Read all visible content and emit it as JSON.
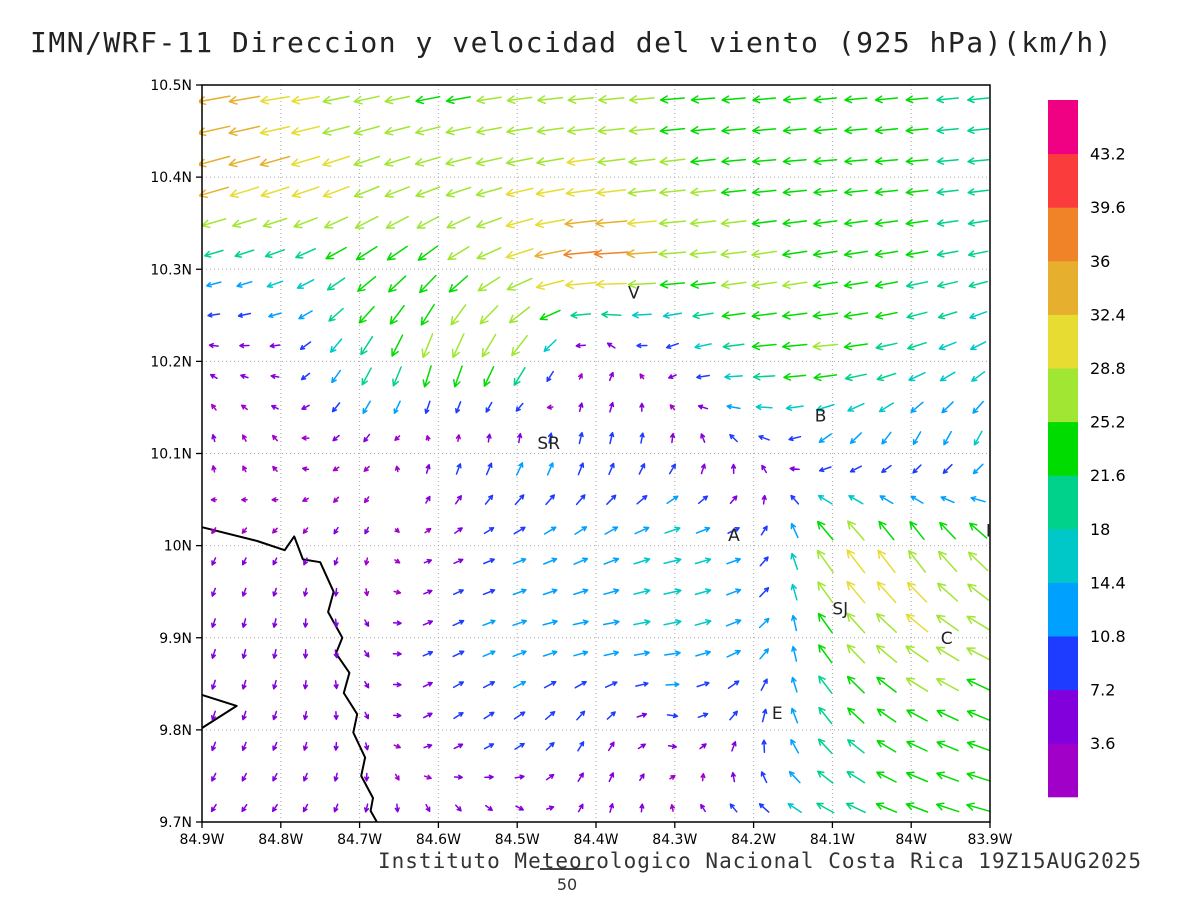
{
  "title": "IMN/WRF-11 Direccion y velocidad del viento (925 hPa)(km/h)",
  "caption": "Instituto Meteorologico Nacional Costa Rica  19Z15AUG2025",
  "chart_data": {
    "type": "vector_field",
    "title": "IMN/WRF-11 Direccion y velocidad del viento (925 hPa)(km/h)",
    "units": "km/h",
    "level": "925 hPa",
    "source": "Instituto Meteorologico Nacional Costa Rica",
    "valid_time": "19Z15AUG2025",
    "grid": true,
    "lon_range_w": [
      84.9,
      83.9
    ],
    "lat_range_n": [
      9.7,
      10.5
    ],
    "lon_tick_vals": [
      84.9,
      84.8,
      84.7,
      84.6,
      84.5,
      84.4,
      84.3,
      84.2,
      84.1,
      84.0,
      83.9
    ],
    "lon_tick_labels": [
      "84.9W",
      "84.8W",
      "84.7W",
      "84.6W",
      "84.5W",
      "84.4W",
      "84.3W",
      "84.2W",
      "84.1W",
      "84W",
      "83.9W"
    ],
    "lat_tick_vals": [
      10.5,
      10.4,
      10.3,
      10.2,
      10.1,
      10.0,
      9.9,
      9.8,
      9.7
    ],
    "lat_tick_labels": [
      "10.5N",
      "10.4N",
      "10.3N",
      "10.2N",
      "10.1N",
      "10N",
      "9.9N",
      "9.8N",
      "9.7N"
    ],
    "colorbar": {
      "units": "km/h",
      "levels": [
        3.6,
        7.2,
        10.8,
        14.4,
        18,
        21.6,
        25.2,
        28.8,
        32.4,
        36,
        39.6,
        43.2
      ],
      "colors": [
        "#a000c8",
        "#8200dc",
        "#1e3cff",
        "#00a0ff",
        "#00c8c8",
        "#00d28c",
        "#00dc00",
        "#a0e632",
        "#e6dc32",
        "#e6af2d",
        "#f08228",
        "#fa3c3c",
        "#f00082"
      ],
      "labels": [
        "43.2",
        "39.6",
        "36",
        "32.4",
        "28.8",
        "25.2",
        "21.6",
        "18",
        "14.4",
        "10.8",
        "7.2",
        "3.6"
      ]
    },
    "stations": [
      {
        "label": "V",
        "lon_w": 84.352,
        "lat_n": 10.268
      },
      {
        "label": "B",
        "lon_w": 84.115,
        "lat_n": 10.135
      },
      {
        "label": "SR",
        "lon_w": 84.46,
        "lat_n": 10.105
      },
      {
        "label": "A",
        "lon_w": 84.225,
        "lat_n": 10.005
      },
      {
        "label": "SJ",
        "lon_w": 84.09,
        "lat_n": 9.925
      },
      {
        "label": "C",
        "lon_w": 83.955,
        "lat_n": 9.893
      },
      {
        "label": "I",
        "lon_w": 83.902,
        "lat_n": 10.01
      },
      {
        "label": "E",
        "lon_w": 84.17,
        "lat_n": 9.812
      }
    ],
    "reference_vector": {
      "label": "50"
    },
    "wind": {
      "lon_w": [
        84.9,
        84.8,
        84.7,
        84.6,
        84.5,
        84.4,
        84.3,
        84.2,
        84.1,
        84.0,
        83.9
      ],
      "lat_n": [
        10.5,
        10.4,
        10.3,
        10.2,
        10.1,
        10.0,
        9.9,
        9.8,
        9.7
      ],
      "uv": [
        [
          [
            -36,
            -6
          ],
          [
            -30,
            -4
          ],
          [
            -26,
            -5
          ],
          [
            -24,
            -4
          ],
          [
            -25,
            -3
          ],
          [
            -26,
            -2
          ],
          [
            -24,
            -2
          ],
          [
            -23,
            -2
          ],
          [
            -22,
            -2
          ],
          [
            -22,
            -2
          ],
          [
            -21,
            -2
          ]
        ],
        [
          [
            -35,
            -10
          ],
          [
            -32,
            -10
          ],
          [
            -27,
            -10
          ],
          [
            -26,
            -8
          ],
          [
            -28,
            -6
          ],
          [
            -30,
            -4
          ],
          [
            -26,
            -3
          ],
          [
            -24,
            -2
          ],
          [
            -23,
            -2
          ],
          [
            -22,
            -2
          ],
          [
            -20,
            -2
          ]
        ],
        [
          [
            -14,
            -4
          ],
          [
            -16,
            -6
          ],
          [
            -20,
            -14
          ],
          [
            -18,
            -16
          ],
          [
            -28,
            -10
          ],
          [
            -41,
            -2
          ],
          [
            -28,
            -2
          ],
          [
            -26,
            -4
          ],
          [
            -24,
            -4
          ],
          [
            -22,
            -4
          ],
          [
            -18,
            -4
          ]
        ],
        [
          [
            -4,
            2
          ],
          [
            -5,
            0
          ],
          [
            -10,
            -18
          ],
          [
            -8,
            -28
          ],
          [
            -14,
            -24
          ],
          [
            4,
            6
          ],
          [
            -6,
            -4
          ],
          [
            -24,
            -2
          ],
          [
            -26,
            -2
          ],
          [
            -18,
            -6
          ],
          [
            -12,
            -8
          ]
        ],
        [
          [
            0,
            4
          ],
          [
            -2,
            3
          ],
          [
            -3,
            -3
          ],
          [
            2,
            8
          ],
          [
            4,
            12
          ],
          [
            2,
            10
          ],
          [
            2,
            8
          ],
          [
            -4,
            6
          ],
          [
            -8,
            -10
          ],
          [
            -4,
            -12
          ],
          [
            -6,
            -14
          ]
        ],
        [
          [
            -2,
            -4
          ],
          [
            -2,
            -3
          ],
          [
            -2,
            -4
          ],
          [
            4,
            2
          ],
          [
            10,
            4
          ],
          [
            12,
            6
          ],
          [
            16,
            4
          ],
          [
            10,
            4
          ],
          [
            -20,
            26
          ],
          [
            -16,
            24
          ],
          [
            -20,
            20
          ]
        ],
        [
          [
            -2,
            -6
          ],
          [
            -1,
            -6
          ],
          [
            2,
            -4
          ],
          [
            8,
            4
          ],
          [
            12,
            4
          ],
          [
            14,
            2
          ],
          [
            16,
            3
          ],
          [
            12,
            6
          ],
          [
            -16,
            20
          ],
          [
            -24,
            18
          ],
          [
            -24,
            12
          ]
        ],
        [
          [
            -2,
            -6
          ],
          [
            -2,
            -5
          ],
          [
            1,
            -4
          ],
          [
            6,
            4
          ],
          [
            8,
            6
          ],
          [
            4,
            8
          ],
          [
            6,
            -2
          ],
          [
            4,
            10
          ],
          [
            -14,
            16
          ],
          [
            -20,
            10
          ],
          [
            -22,
            8
          ]
        ],
        [
          [
            -3,
            -4
          ],
          [
            -3,
            -4
          ],
          [
            -2,
            -5
          ],
          [
            2,
            -5
          ],
          [
            4,
            -4
          ],
          [
            2,
            6
          ],
          [
            -2,
            4
          ],
          [
            -8,
            6
          ],
          [
            -18,
            8
          ],
          [
            -22,
            8
          ],
          [
            -24,
            6
          ]
        ]
      ]
    },
    "coastline": [
      [
        84.9,
        10.02
      ],
      [
        84.83,
        10.005
      ],
      [
        84.795,
        9.995
      ],
      [
        84.783,
        10.01
      ],
      [
        84.772,
        9.985
      ],
      [
        84.75,
        9.982
      ],
      [
        84.733,
        9.95
      ],
      [
        84.74,
        9.928
      ],
      [
        84.722,
        9.9
      ],
      [
        84.73,
        9.883
      ],
      [
        84.713,
        9.862
      ],
      [
        84.72,
        9.84
      ],
      [
        84.703,
        9.817
      ],
      [
        84.708,
        9.797
      ],
      [
        84.693,
        9.77
      ],
      [
        84.698,
        9.75
      ],
      [
        84.683,
        9.726
      ],
      [
        84.686,
        9.712
      ],
      [
        84.678,
        9.7
      ]
    ],
    "islet": [
      [
        84.9,
        9.838
      ],
      [
        84.856,
        9.826
      ],
      [
        84.9,
        9.802
      ]
    ]
  }
}
